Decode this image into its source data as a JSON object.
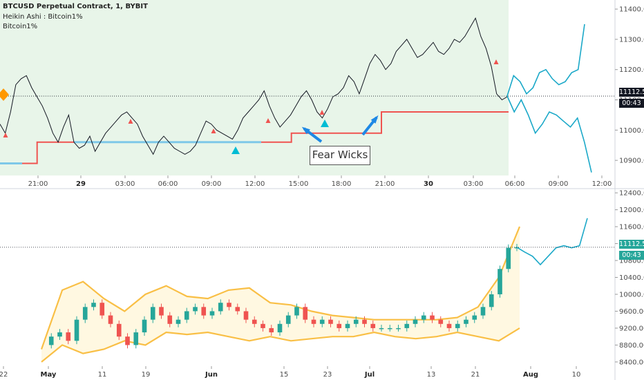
{
  "legend": {
    "symbol": "BTCUSD Perpetual Contract, 1, BYBIT",
    "line2": "Heikin Ashi : Bitcoin1%",
    "line3": "Bitcoin1%"
  },
  "top_chart": {
    "price_tag": "11112.5",
    "countdown": "00:43",
    "annotation": "Fear Wicks"
  },
  "bottom_chart": {
    "price_tag": "11112.5",
    "countdown": "00:43"
  },
  "colors": {
    "shade": "#e8f5e9",
    "price": "#131722",
    "stop_red": "#ef5350",
    "stop_blue": "#7ec8e8",
    "forecast": "#1aa8c8",
    "band": "#f9bf45",
    "up": "#26a69a",
    "down": "#ef5350",
    "arrow": "#1e88e5"
  },
  "chart_data": [
    {
      "type": "line",
      "title": "BTCUSD Perpetual Contract, 1, BYBIT",
      "x_ticks": [
        "21:00",
        "29",
        "03:00",
        "06:00",
        "09:00",
        "12:00",
        "15:00",
        "18:00",
        "21:00",
        "30",
        "03:00",
        "06:00",
        "09:00",
        "12:00"
      ],
      "y_ticks": [
        10900,
        11000,
        11100,
        11200,
        11300,
        11400
      ],
      "ylim": [
        10850,
        11430
      ],
      "grid": false,
      "series": [
        {
          "values": [
            11020,
            10990,
            11060,
            11150,
            11170,
            11180,
            11140,
            11110,
            11080,
            11040,
            10990,
            10960,
            11010,
            11050,
            10960,
            10940,
            10950,
            10980,
            10930,
            10960,
            10990,
            11010,
            11030,
            11050,
            11060,
            11040,
            11020,
            10980,
            10950,
            10920,
            10960,
            10980,
            10960,
            10940,
            10930,
            10920,
            10930,
            10950,
            10990,
            11030,
            11020,
            11000,
            10990,
            10980,
            10970,
            11000,
            11040,
            11060,
            11080,
            11100,
            11130,
            11080,
            11040,
            11010,
            11030,
            11050,
            11080,
            11110,
            11130,
            11100,
            11060,
            11040,
            11070,
            11110,
            11120,
            11140,
            11180,
            11160,
            11120,
            11170,
            11220,
            11250,
            11230,
            11200,
            11220,
            11260,
            11280,
            11300,
            11270,
            11240,
            11250,
            11270,
            11290,
            11260,
            11250,
            11270,
            11300,
            11290,
            11310,
            11340,
            11370,
            11310,
            11270,
            11210,
            11120,
            11100,
            11110
          ]
        },
        {
          "name": "stop",
          "values": [
            10890,
            10890,
            10890,
            10890,
            10890,
            10890,
            10890,
            10960,
            10960,
            10960,
            10960,
            10960,
            10960,
            10960,
            10960,
            10960,
            10960,
            10960,
            10960,
            10960,
            10960,
            10960,
            10960,
            10960,
            10960,
            10960,
            10960,
            10960,
            10960,
            10960,
            10960,
            10960,
            10960,
            10960,
            10960,
            10960,
            10960,
            10960,
            10960,
            10960,
            10960,
            10960,
            10960,
            10960,
            10960,
            10960,
            10960,
            10960,
            10960,
            10960,
            10960,
            10960,
            10960,
            10960,
            10960,
            10990,
            10990,
            10990,
            10990,
            10990,
            10990,
            10990,
            10990,
            10990,
            10990,
            10990,
            10990,
            10990,
            10990,
            10990,
            10990,
            10990,
            11060,
            11060,
            11060,
            11060,
            11060,
            11060,
            11060,
            11060,
            11060,
            11060,
            11060,
            11060,
            11060,
            11060,
            11060,
            11060,
            11060,
            11060,
            11060,
            11060,
            11060,
            11060,
            11060,
            11060,
            11060
          ]
        },
        {
          "name": "forecast upper",
          "values": [
            11112.5,
            11180,
            11160,
            11120,
            11140,
            11190,
            11200,
            11170,
            11150,
            11160,
            11190,
            11200,
            11350
          ]
        },
        {
          "name": "forecast lower",
          "values": [
            11112.5,
            11060,
            11100,
            11050,
            10990,
            11020,
            11060,
            11050,
            11030,
            11010,
            11040,
            10960,
            10860
          ]
        }
      ],
      "current_price": 11112.5
    },
    {
      "type": "bar",
      "x_ticks": [
        "22",
        "May",
        "11",
        "19",
        "Jun",
        "15",
        "23",
        "Jul",
        "13",
        "21",
        "Aug",
        "10"
      ],
      "y_ticks": [
        8400,
        8800,
        9200,
        9600,
        10000,
        10400,
        10800,
        11200,
        11600,
        12000,
        12400
      ],
      "ylim": [
        8300,
        12500
      ],
      "series": [
        {
          "name": "close",
          "values": [
            8800,
            9000,
            9100,
            8900,
            9400,
            9700,
            9800,
            9500,
            9300,
            9000,
            8800,
            9100,
            9400,
            9700,
            9500,
            9300,
            9400,
            9600,
            9700,
            9500,
            9600,
            9800,
            9700,
            9600,
            9400,
            9300,
            9200,
            9100,
            9300,
            9500,
            9700,
            9400,
            9300,
            9400,
            9300,
            9200,
            9300,
            9400,
            9300,
            9200,
            9200,
            9200,
            9200,
            9300,
            9400,
            9500,
            9400,
            9300,
            9200,
            9300,
            9400,
            9500,
            9700,
            10000,
            10600,
            11100,
            11112.5
          ]
        },
        {
          "name": "upper band",
          "values": [
            8700,
            10100,
            10300,
            9900,
            9600,
            10000,
            10200,
            9950,
            9900,
            10100,
            10150,
            9800,
            9750,
            9600,
            9500,
            9450,
            9400,
            9400,
            9400,
            9400,
            9450,
            9700,
            10400,
            11600
          ]
        },
        {
          "name": "lower band",
          "values": [
            8400,
            8800,
            8600,
            8700,
            8900,
            8800,
            9100,
            9050,
            9100,
            9000,
            8900,
            9000,
            8900,
            8950,
            9000,
            9000,
            9100,
            9000,
            8950,
            9000,
            9100,
            9000,
            8900,
            9200
          ]
        },
        {
          "name": "forecast",
          "values": [
            11112.5,
            11000,
            10900,
            10700,
            10900,
            11100,
            11150,
            11100,
            11150,
            11800
          ]
        }
      ],
      "current_price": 11112.5
    }
  ]
}
